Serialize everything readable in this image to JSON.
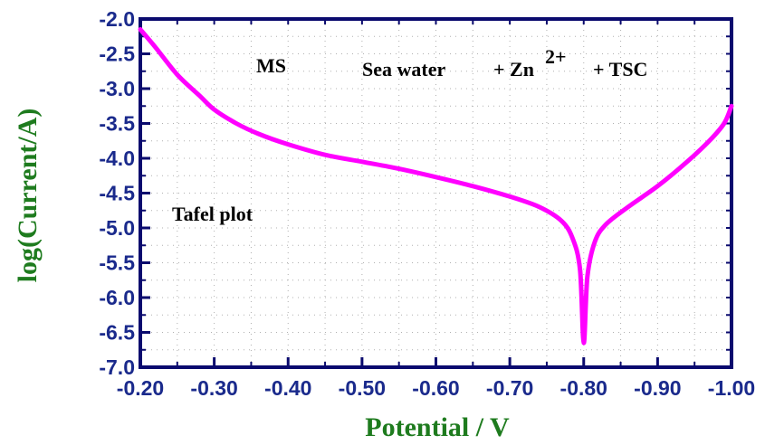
{
  "chart_data": {
    "type": "line",
    "xlabel": "Potential / V",
    "ylabel": "log(Current/A)",
    "xlim": [
      -0.2,
      -1.0
    ],
    "ylim": [
      -7.0,
      -2.0
    ],
    "x_ticks": [
      -0.2,
      -0.3,
      -0.4,
      -0.5,
      -0.6,
      -0.7,
      -0.8,
      -0.9,
      -1.0
    ],
    "x_tick_labels": [
      "-0.20",
      "-0.30",
      "-0.40",
      "-0.50",
      "-0.60",
      "-0.70",
      "-0.80",
      "-0.90",
      "-1.00"
    ],
    "y_ticks": [
      -2.0,
      -2.5,
      -3.0,
      -3.5,
      -4.0,
      -4.5,
      -5.0,
      -5.5,
      -6.0,
      -6.5,
      -7.0
    ],
    "y_tick_labels": [
      "-2.0",
      "-2.5",
      "-3.0",
      "-3.5",
      "-4.0",
      "-4.5",
      "-5.0",
      "-5.5",
      "-6.0",
      "-6.5",
      "-7.0"
    ],
    "grid": true,
    "annotations": {
      "sample": "MS",
      "medium": "Sea water",
      "zn_prefix": "+ Zn",
      "zn_sup": "2+",
      "tsc": "+ TSC",
      "plot_type": "Tafel plot"
    },
    "series": [
      {
        "color": "#ff00ff",
        "x": [
          -0.2,
          -0.22,
          -0.25,
          -0.28,
          -0.3,
          -0.33,
          -0.36,
          -0.4,
          -0.45,
          -0.5,
          -0.55,
          -0.6,
          -0.65,
          -0.7,
          -0.74,
          -0.77,
          -0.785,
          -0.795,
          -0.8,
          -0.805,
          -0.815,
          -0.83,
          -0.86,
          -0.9,
          -0.94,
          -0.97,
          -0.99,
          -1.0
        ],
        "y": [
          -2.15,
          -2.4,
          -2.8,
          -3.1,
          -3.3,
          -3.5,
          -3.65,
          -3.8,
          -3.95,
          -4.05,
          -4.15,
          -4.27,
          -4.4,
          -4.55,
          -4.7,
          -4.9,
          -5.15,
          -5.6,
          -6.65,
          -5.7,
          -5.2,
          -4.95,
          -4.7,
          -4.4,
          -4.05,
          -3.75,
          -3.5,
          -3.25
        ]
      }
    ]
  }
}
